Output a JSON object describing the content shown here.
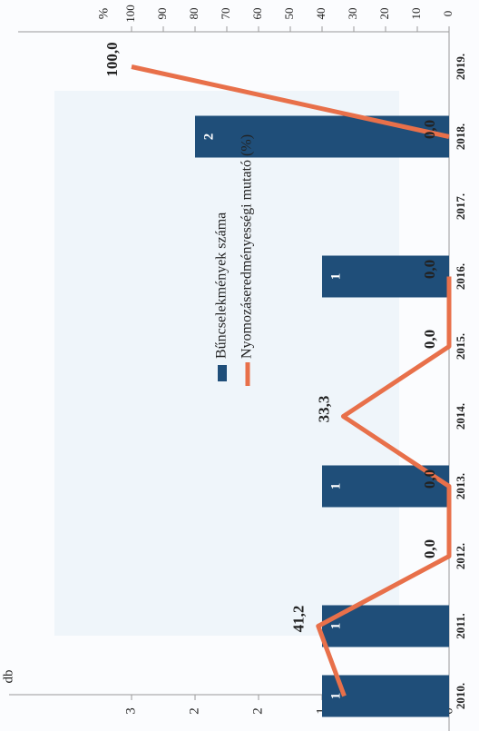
{
  "chart_data": {
    "type": "bar-line",
    "categories": [
      "2010.",
      "2011.",
      "2012.",
      "2013.",
      "2014.",
      "2015.",
      "2016.",
      "2017.",
      "2018.",
      "2019."
    ],
    "series": [
      {
        "name": "Bűncselekmények száma",
        "type": "bar",
        "color": "#1f4e79",
        "values": [
          1,
          1,
          0,
          1,
          0,
          0,
          1,
          0,
          2,
          0
        ],
        "value_labels": [
          "1",
          "1",
          null,
          "1",
          null,
          null,
          "1",
          null,
          "2",
          null
        ]
      },
      {
        "name": "Nyomozáseredményességi mutató (%)",
        "type": "line",
        "axis": "y2",
        "color": "#e8704a",
        "values": [
          33,
          41.2,
          0,
          0,
          33.3,
          0,
          0,
          null,
          0,
          100
        ],
        "value_labels": [
          null,
          "41,2",
          "0,0",
          "0,0",
          "33,3",
          "0,0",
          "0,0",
          null,
          "0,0",
          "100,0"
        ]
      }
    ],
    "ylabel": "db",
    "y2label": "%",
    "ylim": [
      0,
      3
    ],
    "yticks": [
      0,
      {
        "value": 0.5,
        "label": "1"
      },
      1,
      {
        "value": 1.5,
        "label": "2"
      },
      2,
      {
        "value": 2.5,
        "label": "3"
      }
    ],
    "y2lim": [
      0,
      120
    ],
    "y2ticks": [
      0,
      10,
      20,
      30,
      40,
      50,
      60,
      70,
      80,
      90,
      100
    ]
  }
}
